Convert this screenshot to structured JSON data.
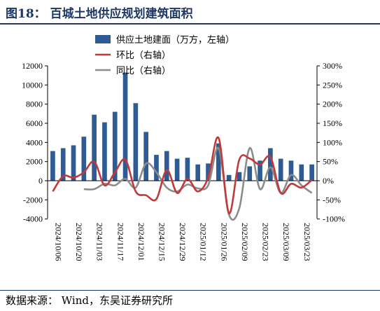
{
  "figure": {
    "title": "图18：  百城土地供应规划建筑面积",
    "source": "数据来源：  Wind，东吴证券研究所"
  },
  "colors": {
    "bar": "#2e5b94",
    "mom": "#c0393b",
    "yoy": "#8c8c8c",
    "title": "#1f3864"
  },
  "chart_data": {
    "type": "bar",
    "categories": [
      "2024/10/06",
      "2024/10/13",
      "2024/10/20",
      "2024/10/27",
      "2024/11/03",
      "2024/11/10",
      "2024/11/17",
      "2024/11/24",
      "2024/12/01",
      "2024/12/08",
      "2024/12/15",
      "2024/12/22",
      "2024/12/29",
      "2025/01/05",
      "2025/01/12",
      "2025/01/19",
      "2025/01/26",
      "2025/02/02",
      "2025/02/09",
      "2025/02/16",
      "2025/02/23",
      "2025/03/02",
      "2025/03/09",
      "2025/03/16",
      "2025/03/23",
      "2025/03/30"
    ],
    "x_tick_labels": [
      "2024/10/06",
      "2024/10/20",
      "2024/11/03",
      "2024/11/17",
      "2024/12/01",
      "2024/12/15",
      "2024/12/29",
      "2025/01/12",
      "2025/01/26",
      "2025/02/09",
      "2025/02/23",
      "2025/03/09",
      "2025/03/23"
    ],
    "series": [
      {
        "name": "供应土地建面（万方，左轴）",
        "type": "bar",
        "axis": "left",
        "values": [
          3100,
          3400,
          3700,
          4600,
          6900,
          6100,
          7200,
          11300,
          8100,
          5100,
          2700,
          3100,
          2300,
          2400,
          1700,
          1800,
          3900,
          600,
          900,
          1500,
          2100,
          3400,
          2300,
          2100,
          1700,
          1700
        ]
      },
      {
        "name": "环比（右轴）",
        "type": "line",
        "axis": "right",
        "values": [
          -28,
          12,
          8,
          22,
          50,
          -12,
          22,
          55,
          -28,
          -38,
          -48,
          28,
          -32,
          5,
          -28,
          8,
          112,
          -85,
          55,
          58,
          42,
          62,
          -32,
          -8,
          -18,
          2
        ]
      },
      {
        "name": "同比（右轴）",
        "type": "line",
        "axis": "right",
        "values": [
          null,
          null,
          null,
          -22,
          -22,
          -8,
          -12,
          5,
          -18,
          45,
          22,
          -18,
          -28,
          -10,
          -20,
          -12,
          85,
          -88,
          -72,
          85,
          -22,
          35,
          -32,
          15,
          -12,
          -32
        ]
      }
    ],
    "y_left": {
      "min": -4000,
      "max": 12000,
      "ticks": [
        -4000,
        -2000,
        0,
        2000,
        4000,
        6000,
        8000,
        10000,
        12000
      ]
    },
    "y_right": {
      "min": -100,
      "max": 300,
      "ticks": [
        "-100%",
        "-50%",
        "0%",
        "50%",
        "100%",
        "150%",
        "200%",
        "250%",
        "300%"
      ]
    },
    "legend_position": "top-right"
  }
}
